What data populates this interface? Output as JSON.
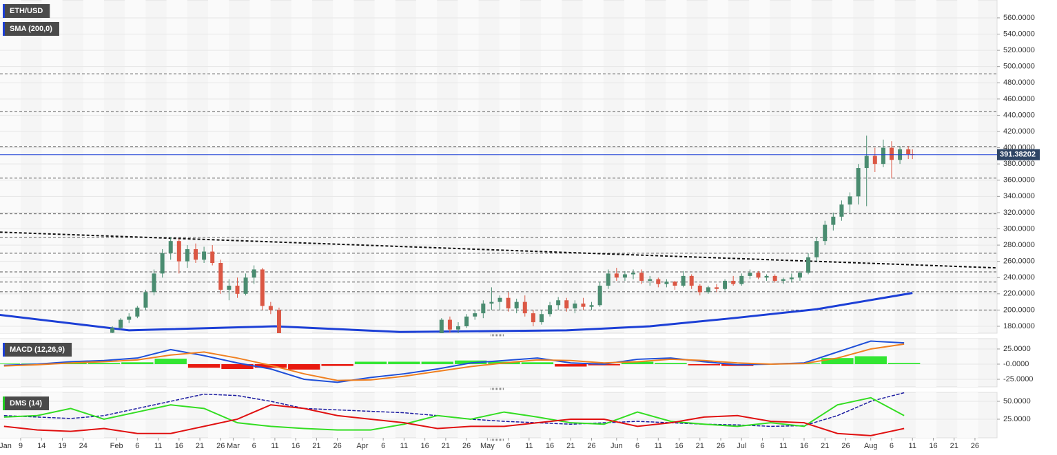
{
  "chart_data": [
    {
      "type": "candlestick",
      "label": "ETH/USD",
      "overlay": "SMA (200,0)",
      "x": [
        31,
        33,
        35,
        37,
        39,
        41,
        43,
        45,
        47,
        49,
        51,
        53,
        55,
        57,
        59,
        61,
        63,
        65,
        67,
        69,
        71,
        110,
        112,
        114,
        116,
        118,
        120,
        122,
        124,
        126,
        128,
        130,
        132,
        134,
        136,
        138,
        140,
        142,
        144,
        146,
        148,
        150,
        152,
        154,
        156,
        158,
        160,
        162,
        164,
        166,
        168,
        170,
        172,
        174,
        176,
        178,
        180,
        182,
        184,
        186,
        188,
        190,
        192,
        194,
        196,
        198,
        200,
        202,
        204,
        206,
        208,
        210,
        212,
        214,
        216,
        218,
        220,
        222,
        223
      ],
      "ohlc": [
        [
          172,
          180,
          170,
          178
        ],
        [
          178,
          190,
          176,
          188
        ],
        [
          188,
          196,
          184,
          192
        ],
        [
          192,
          205,
          190,
          203
        ],
        [
          203,
          225,
          200,
          222
        ],
        [
          222,
          250,
          218,
          245
        ],
        [
          245,
          275,
          240,
          270
        ],
        [
          270,
          290,
          262,
          285
        ],
        [
          285,
          288,
          245,
          260
        ],
        [
          260,
          280,
          252,
          275
        ],
        [
          275,
          282,
          258,
          262
        ],
        [
          262,
          278,
          258,
          272
        ],
        [
          272,
          280,
          255,
          258
        ],
        [
          258,
          262,
          220,
          225
        ],
        [
          225,
          238,
          212,
          230
        ],
        [
          230,
          240,
          215,
          220
        ],
        [
          220,
          245,
          218,
          240
        ],
        [
          240,
          255,
          232,
          250
        ],
        [
          250,
          252,
          200,
          205
        ],
        [
          205,
          210,
          195,
          200
        ],
        [
          200,
          203,
          165,
          170
        ],
        [
          170,
          190,
          168,
          188
        ],
        [
          188,
          192,
          172,
          176
        ],
        [
          176,
          185,
          170,
          180
        ],
        [
          180,
          195,
          178,
          192
        ],
        [
          192,
          200,
          188,
          196
        ],
        [
          196,
          212,
          190,
          208
        ],
        [
          208,
          228,
          200,
          210
        ],
        [
          210,
          218,
          200,
          215
        ],
        [
          215,
          222,
          198,
          202
        ],
        [
          202,
          214,
          196,
          210
        ],
        [
          210,
          218,
          192,
          196
        ],
        [
          196,
          200,
          180,
          185
        ],
        [
          185,
          200,
          182,
          195
        ],
        [
          195,
          210,
          192,
          206
        ],
        [
          206,
          216,
          200,
          212
        ],
        [
          212,
          215,
          198,
          202
        ],
        [
          202,
          212,
          196,
          208
        ],
        [
          208,
          215,
          200,
          204
        ],
        [
          204,
          210,
          200,
          206
        ],
        [
          206,
          235,
          204,
          230
        ],
        [
          230,
          250,
          226,
          245
        ],
        [
          245,
          252,
          236,
          240
        ],
        [
          240,
          248,
          236,
          244
        ],
        [
          244,
          250,
          238,
          246
        ],
        [
          246,
          250,
          232,
          236
        ],
        [
          236,
          242,
          230,
          238
        ],
        [
          238,
          240,
          228,
          232
        ],
        [
          232,
          238,
          228,
          235
        ],
        [
          235,
          236,
          225,
          230
        ],
        [
          230,
          248,
          228,
          242
        ],
        [
          242,
          244,
          226,
          230
        ],
        [
          230,
          232,
          218,
          222
        ],
        [
          222,
          230,
          220,
          228
        ],
        [
          228,
          232,
          222,
          226
        ],
        [
          226,
          238,
          224,
          236
        ],
        [
          236,
          242,
          230,
          232
        ],
        [
          232,
          245,
          230,
          242
        ],
        [
          242,
          250,
          238,
          246
        ],
        [
          246,
          248,
          238,
          240
        ],
        [
          240,
          244,
          236,
          242
        ],
        [
          242,
          244,
          234,
          236
        ],
        [
          236,
          240,
          232,
          238
        ],
        [
          238,
          245,
          234,
          240
        ],
        [
          240,
          248,
          236,
          246
        ],
        [
          246,
          270,
          244,
          265
        ],
        [
          265,
          290,
          260,
          285
        ],
        [
          285,
          310,
          280,
          305
        ],
        [
          305,
          320,
          298,
          315
        ],
        [
          315,
          335,
          310,
          330
        ],
        [
          330,
          345,
          320,
          340
        ],
        [
          340,
          380,
          330,
          375
        ],
        [
          375,
          415,
          328,
          390
        ],
        [
          390,
          400,
          370,
          380
        ],
        [
          380,
          410,
          376,
          400
        ],
        [
          400,
          408,
          362,
          385
        ],
        [
          385,
          402,
          380,
          398
        ],
        [
          398,
          402,
          386,
          392
        ],
        [
          392,
          398,
          386,
          391.38202
        ]
      ],
      "up_color": "#4a8c70",
      "down_color": "#db5744",
      "sma": {
        "color": "#1c3fd6",
        "x": [
          4,
          35,
          70,
          100,
          140,
          160,
          180,
          200,
          223
        ],
        "values": [
          194,
          175,
          180,
          173,
          175,
          180,
          190,
          201,
          221
        ]
      },
      "trendline": {
        "color": "#111111",
        "x": [
          4,
          243
        ],
        "values": [
          296,
          252
        ]
      },
      "levels": [
        491,
        444.5,
        401.5,
        362.5,
        318.5,
        289.5,
        270,
        247,
        234.5,
        222.5,
        200
      ],
      "last": 391.38202,
      "xlim": [
        4.04,
        243.3
      ],
      "ylim": [
        171.5,
        582
      ],
      "yticks": [
        {
          "value": 180,
          "label": "180.0000"
        },
        {
          "value": 200,
          "label": "200.0000"
        },
        {
          "value": 220,
          "label": "220.0000"
        },
        {
          "value": 240,
          "label": "240.0000"
        },
        {
          "value": 260,
          "label": "260.0000"
        },
        {
          "value": 280,
          "label": "280.0000"
        },
        {
          "value": 300,
          "label": "300.0000"
        },
        {
          "value": 320,
          "label": "320.0000"
        },
        {
          "value": 340,
          "label": "340.0000"
        },
        {
          "value": 360,
          "label": "360.0000"
        },
        {
          "value": 380,
          "label": "380.0000"
        },
        {
          "value": 400,
          "label": "400.0000"
        },
        {
          "value": 420,
          "label": "420.0000"
        },
        {
          "value": 440,
          "label": "440.0000"
        },
        {
          "value": 460,
          "label": "460.0000"
        },
        {
          "value": 480,
          "label": "480.0000"
        },
        {
          "value": 500,
          "label": "500.0000"
        },
        {
          "value": 520,
          "label": "520.0000"
        },
        {
          "value": 540,
          "label": "540.0000"
        },
        {
          "value": 560,
          "label": "560.0000"
        }
      ]
    },
    {
      "type": "macd",
      "label": "MACD (12,26,9)",
      "x": [
        5,
        13,
        21,
        29,
        37,
        45,
        53,
        61,
        69,
        77,
        85,
        93,
        101,
        109,
        117,
        125,
        133,
        141,
        149,
        157,
        165,
        173,
        181,
        189,
        197,
        205,
        213,
        221
      ],
      "series": [
        {
          "color": "#1f4fd8",
          "values": [
            -2,
            0,
            4,
            6,
            10,
            24,
            14,
            2,
            -8,
            -25,
            -30,
            -22,
            -16,
            -8,
            2,
            6,
            10,
            2,
            0,
            8,
            10,
            4,
            -1,
            0,
            2,
            20,
            38,
            35
          ]
        },
        {
          "color": "#f08020",
          "values": [
            -3,
            -1,
            2,
            4,
            7,
            15,
            20,
            10,
            -2,
            -16,
            -27,
            -26,
            -20,
            -12,
            -4,
            2,
            7,
            6,
            2,
            4,
            8,
            6,
            2,
            0,
            1,
            10,
            25,
            33
          ]
        }
      ],
      "histogram": [
        1,
        1,
        2,
        2,
        3,
        9,
        -6,
        -8,
        -6,
        -9,
        -3,
        4,
        4,
        4,
        6,
        4,
        3,
        -4,
        -2,
        4,
        2,
        -2,
        -3,
        0,
        1,
        10,
        13,
        2
      ],
      "pos_color": "#33e633",
      "neg_color": "#e81a10",
      "xlim": [
        4.04,
        243.3
      ],
      "ylim": [
        -37.5,
        42
      ],
      "yticks": [
        {
          "value": -25,
          "label": "-25.0000"
        },
        {
          "value": 0,
          "label": "-0.0000"
        },
        {
          "value": 25,
          "label": "25.0000"
        }
      ]
    },
    {
      "type": "line",
      "label": "DMS (14)",
      "x": [
        5,
        13,
        21,
        29,
        37,
        45,
        53,
        61,
        69,
        77,
        85,
        93,
        101,
        109,
        117,
        125,
        133,
        141,
        149,
        157,
        165,
        173,
        181,
        189,
        197,
        205,
        213,
        221
      ],
      "series": [
        {
          "color": "#1a1aa0",
          "dashed": true,
          "values": [
            30,
            28,
            26,
            30,
            40,
            50,
            60,
            58,
            50,
            40,
            38,
            36,
            34,
            30,
            25,
            22,
            20,
            18,
            20,
            22,
            20,
            18,
            17,
            15,
            16,
            30,
            50,
            62
          ]
        },
        {
          "color": "#33dd22",
          "values": [
            28,
            30,
            40,
            25,
            35,
            45,
            40,
            20,
            15,
            12,
            10,
            10,
            18,
            30,
            25,
            35,
            28,
            20,
            18,
            35,
            22,
            18,
            15,
            20,
            15,
            45,
            55,
            30
          ]
        },
        {
          "color": "#e01010",
          "values": [
            15,
            10,
            8,
            12,
            5,
            5,
            15,
            25,
            45,
            40,
            30,
            25,
            20,
            12,
            15,
            15,
            20,
            25,
            25,
            15,
            20,
            28,
            30,
            22,
            20,
            5,
            2,
            12
          ]
        }
      ],
      "xlim": [
        4.04,
        243.3
      ],
      "ylim": [
        -1,
        62.5
      ],
      "yticks": [
        {
          "value": 25,
          "label": "25.0000"
        },
        {
          "value": 50,
          "label": "50.0000"
        }
      ],
      "xticks": [
        {
          "value": 1,
          "label": "Jan"
        },
        {
          "value": 9,
          "label": "9"
        },
        {
          "value": 14,
          "label": "14"
        },
        {
          "value": 19,
          "label": "19"
        },
        {
          "value": 24,
          "label": "24"
        },
        {
          "value": 32,
          "label": "Feb"
        },
        {
          "value": 37,
          "label": "6"
        },
        {
          "value": 42,
          "label": "11"
        },
        {
          "value": 47,
          "label": "16"
        },
        {
          "value": 52,
          "label": "21"
        },
        {
          "value": 57,
          "label": "26"
        },
        {
          "value": 60,
          "label": "Mar"
        },
        {
          "value": 65,
          "label": "6"
        },
        {
          "value": 70,
          "label": "11"
        },
        {
          "value": 75,
          "label": "16"
        },
        {
          "value": 80,
          "label": "21"
        },
        {
          "value": 85,
          "label": "26"
        },
        {
          "value": 91,
          "label": "Apr"
        },
        {
          "value": 96,
          "label": "6"
        },
        {
          "value": 101,
          "label": "11"
        },
        {
          "value": 106,
          "label": "16"
        },
        {
          "value": 111,
          "label": "21"
        },
        {
          "value": 116,
          "label": "26"
        },
        {
          "value": 121,
          "label": "May"
        },
        {
          "value": 126,
          "label": "6"
        },
        {
          "value": 131,
          "label": "11"
        },
        {
          "value": 136,
          "label": "16"
        },
        {
          "value": 141,
          "label": "21"
        },
        {
          "value": 146,
          "label": "26"
        },
        {
          "value": 152,
          "label": "Jun"
        },
        {
          "value": 157,
          "label": "6"
        },
        {
          "value": 162,
          "label": "11"
        },
        {
          "value": 167,
          "label": "16"
        },
        {
          "value": 172,
          "label": "21"
        },
        {
          "value": 177,
          "label": "26"
        },
        {
          "value": 182,
          "label": "Jul"
        },
        {
          "value": 187,
          "label": "6"
        },
        {
          "value": 192,
          "label": "11"
        },
        {
          "value": 197,
          "label": "16"
        },
        {
          "value": 202,
          "label": "21"
        },
        {
          "value": 207,
          "label": "26"
        },
        {
          "value": 213,
          "label": "Aug"
        },
        {
          "value": 218,
          "label": "6"
        },
        {
          "value": 223,
          "label": "11"
        },
        {
          "value": 228,
          "label": "16"
        },
        {
          "value": 233,
          "label": "21"
        },
        {
          "value": 238,
          "label": "26"
        }
      ]
    }
  ]
}
